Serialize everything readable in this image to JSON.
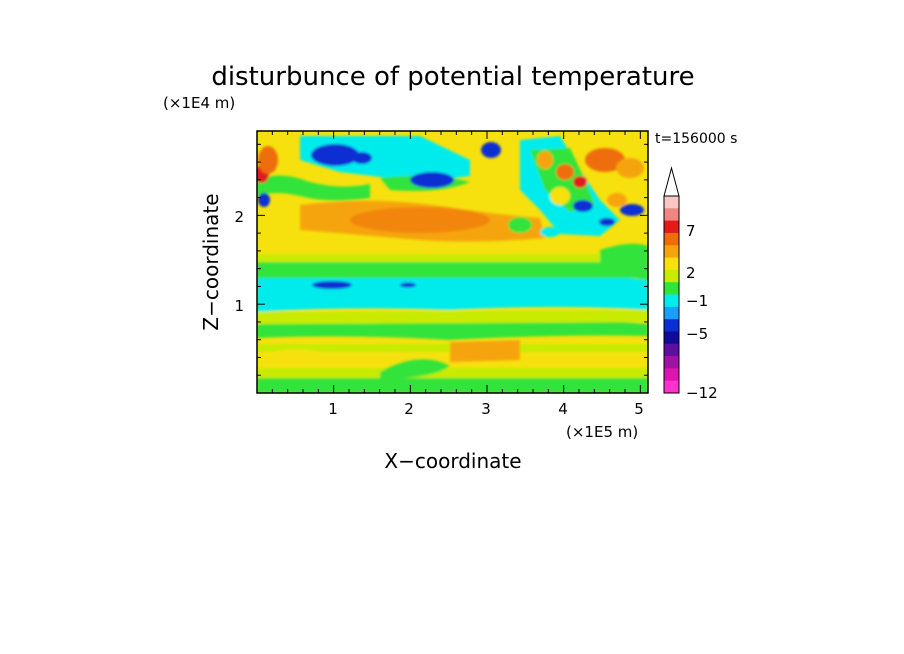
{
  "chart_data": {
    "type": "heatmap",
    "title": "disturbunce of potential temperature",
    "time_label": "t=156000 s",
    "xlabel": "X−coordinate",
    "ylabel": "Z−coordinate",
    "x_unit": "(×1E5 m)",
    "y_unit": "(×1E4 m)",
    "xlim": [
      0,
      5.1
    ],
    "ylim": [
      0,
      2.95
    ],
    "x_ticks": [
      "1",
      "2",
      "3",
      "4",
      "5"
    ],
    "y_ticks": [
      "1",
      "2"
    ],
    "colorbar": {
      "tick_labels": [
        "7",
        "2",
        "−1",
        "−5",
        "−12"
      ],
      "colors_top_to_bottom": [
        "#f9c7c3",
        "#ef8682",
        "#e21b1b",
        "#ee6d09",
        "#f6a40e",
        "#f6e10e",
        "#c8eb00",
        "#33e33b",
        "#00ecec",
        "#19a0ff",
        "#0c2ed3",
        "#120b9a",
        "#5b10a2",
        "#a012a3",
        "#dc14b0",
        "#ff33cc"
      ]
    }
  }
}
